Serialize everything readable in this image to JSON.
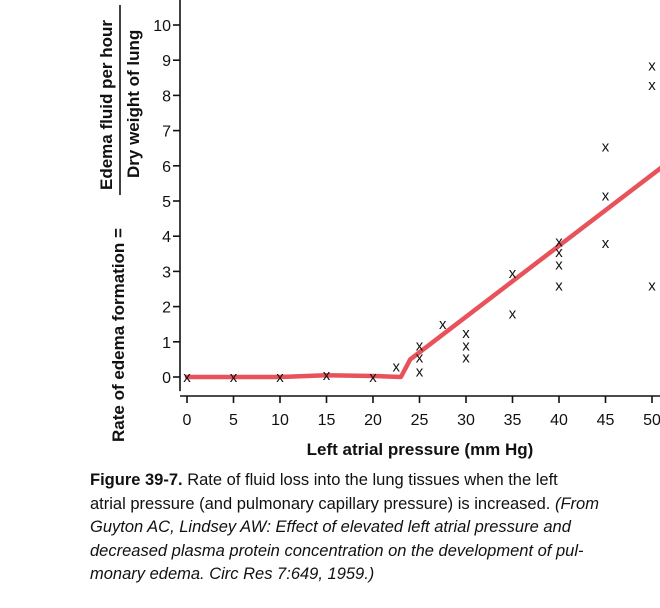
{
  "chart_data": {
    "type": "scatter",
    "xlabel": "Left atrial pressure (mm Hg)",
    "ylabel_prefix": "Rate of edema formation =",
    "ylabel_numerator": "Edema fluid per hour",
    "ylabel_denominator": "Dry weight of lung",
    "xticks": [
      0,
      5,
      10,
      15,
      20,
      25,
      30,
      35,
      40,
      45,
      50
    ],
    "yticks": [
      0,
      1,
      2,
      3,
      4,
      5,
      6,
      7,
      8,
      9,
      10
    ],
    "xlim": [
      0,
      52
    ],
    "ylim": [
      -0.4,
      11
    ],
    "grid": false,
    "marker": "x",
    "points": [
      {
        "x": 0,
        "y": 0
      },
      {
        "x": 5,
        "y": 0
      },
      {
        "x": 10,
        "y": 0
      },
      {
        "x": 15,
        "y": 0.05
      },
      {
        "x": 20,
        "y": 0
      },
      {
        "x": 22.5,
        "y": 0.3
      },
      {
        "x": 25,
        "y": 0.15
      },
      {
        "x": 25,
        "y": 0.55
      },
      {
        "x": 25,
        "y": 0.9
      },
      {
        "x": 27.5,
        "y": 1.5
      },
      {
        "x": 30,
        "y": 0.55
      },
      {
        "x": 30,
        "y": 0.9
      },
      {
        "x": 30,
        "y": 1.25
      },
      {
        "x": 35,
        "y": 1.8
      },
      {
        "x": 35,
        "y": 2.95
      },
      {
        "x": 40,
        "y": 2.6
      },
      {
        "x": 40,
        "y": 3.2
      },
      {
        "x": 40,
        "y": 3.55
      },
      {
        "x": 40,
        "y": 3.85
      },
      {
        "x": 45,
        "y": 3.8
      },
      {
        "x": 45,
        "y": 5.15
      },
      {
        "x": 45,
        "y": 6.55
      },
      {
        "x": 50,
        "y": 2.6
      },
      {
        "x": 50,
        "y": 8.3
      },
      {
        "x": 50,
        "y": 8.85
      }
    ],
    "fit_line": {
      "color": "#e8525a",
      "points": [
        {
          "x": 0,
          "y": 0
        },
        {
          "x": 5,
          "y": 0
        },
        {
          "x": 10,
          "y": 0
        },
        {
          "x": 15,
          "y": 0.05
        },
        {
          "x": 20,
          "y": 0.03
        },
        {
          "x": 23,
          "y": 0
        },
        {
          "x": 24,
          "y": 0.5
        },
        {
          "x": 52,
          "y": 6.15
        }
      ]
    }
  },
  "caption": {
    "figure_label": "Figure 39-7.",
    "line1_text": " Rate of fluid loss into the lung tissues when the left",
    "line2_text": "atrial pressure (and pulmonary capillary pressure) is increased. ",
    "line2_italic": "(From",
    "line3_italic": "Guyton AC, Lindsey AW: Effect of elevated left atrial pressure and",
    "line4_italic": "decreased plasma protein concentration on the development of pul-",
    "line5_italic": "monary edema. Circ Res 7:649, 1959.)"
  }
}
